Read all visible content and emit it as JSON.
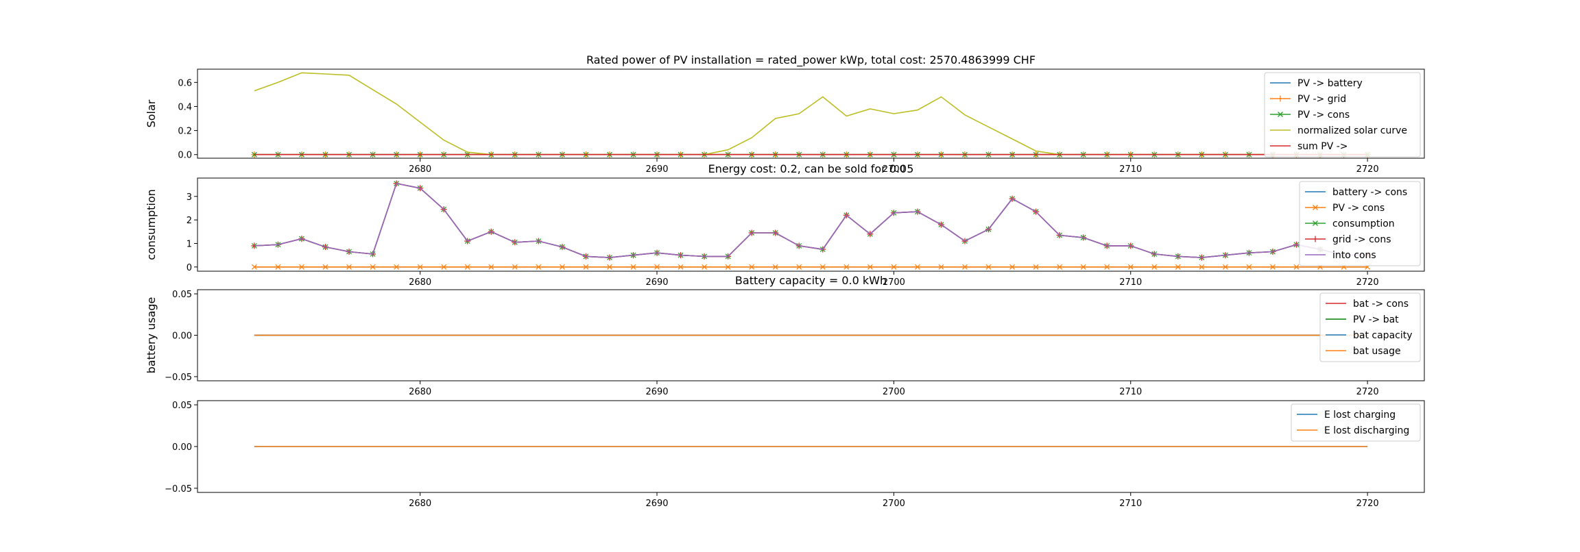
{
  "chart_data": [
    {
      "type": "line",
      "title": "Rated power of PV installation = rated_power kWp, total cost: 2570.4863999 CHF",
      "xlabel": "",
      "ylabel": "Solar",
      "xlim": [
        2670.6,
        2722.4
      ],
      "ylim": [
        -0.03,
        0.71
      ],
      "xticks": [
        2680,
        2690,
        2700,
        2710,
        2720
      ],
      "yticks": [
        0.0,
        0.2,
        0.4,
        0.6
      ],
      "ytick_labels": [
        "0.0",
        "0.2",
        "0.4",
        "0.6"
      ],
      "legend_position": "top-right",
      "x": [
        2673,
        2674,
        2675,
        2676,
        2677,
        2678,
        2679,
        2680,
        2681,
        2682,
        2683,
        2684,
        2685,
        2686,
        2687,
        2688,
        2689,
        2690,
        2691,
        2692,
        2693,
        2694,
        2695,
        2696,
        2697,
        2698,
        2699,
        2700,
        2701,
        2702,
        2703,
        2704,
        2705,
        2706,
        2707,
        2708,
        2709,
        2710,
        2711,
        2712,
        2713,
        2714,
        2715,
        2716,
        2717,
        2718,
        2719,
        2720
      ],
      "series": [
        {
          "name": "PV -> battery",
          "color": "#1f77b4",
          "marker": "none",
          "values": [
            0,
            0,
            0,
            0,
            0,
            0,
            0,
            0,
            0,
            0,
            0,
            0,
            0,
            0,
            0,
            0,
            0,
            0,
            0,
            0,
            0,
            0,
            0,
            0,
            0,
            0,
            0,
            0,
            0,
            0,
            0,
            0,
            0,
            0,
            0,
            0,
            0,
            0,
            0,
            0,
            0,
            0,
            0,
            0,
            0,
            0,
            0,
            0
          ]
        },
        {
          "name": "PV -> grid",
          "color": "#ff7f0e",
          "marker": "plus",
          "values": [
            0,
            0,
            0,
            0,
            0,
            0,
            0,
            0,
            0,
            0,
            0,
            0,
            0,
            0,
            0,
            0,
            0,
            0,
            0,
            0,
            0,
            0,
            0,
            0,
            0,
            0,
            0,
            0,
            0,
            0,
            0,
            0,
            0,
            0,
            0,
            0,
            0,
            0,
            0,
            0,
            0,
            0,
            0,
            0,
            0,
            0,
            0,
            0
          ]
        },
        {
          "name": "PV -> cons",
          "color": "#2ca02c",
          "marker": "x",
          "values": [
            0,
            0,
            0,
            0,
            0,
            0,
            0,
            0,
            0,
            0,
            0,
            0,
            0,
            0,
            0,
            0,
            0,
            0,
            0,
            0,
            0,
            0,
            0,
            0,
            0,
            0,
            0,
            0,
            0,
            0,
            0,
            0,
            0,
            0,
            0,
            0,
            0,
            0,
            0,
            0,
            0,
            0,
            0,
            0,
            0,
            0,
            0,
            0
          ]
        },
        {
          "name": "normalized solar curve",
          "color": "#bcbd22",
          "marker": "none",
          "values": [
            0.53,
            0.6,
            0.68,
            0.67,
            0.66,
            0.54,
            0.42,
            0.27,
            0.12,
            0.02,
            0,
            0,
            0,
            0,
            0,
            0,
            0,
            0,
            0,
            0,
            0.04,
            0.14,
            0.3,
            0.34,
            0.48,
            0.32,
            0.38,
            0.34,
            0.37,
            0.48,
            0.33,
            0.23,
            0.13,
            0.03,
            0,
            0,
            0,
            0,
            0,
            0,
            0,
            0,
            0,
            0,
            0,
            0,
            0,
            0
          ]
        },
        {
          "name": "sum PV ->",
          "color": "#d62728",
          "marker": "none",
          "values": [
            0,
            0,
            0,
            0,
            0,
            0,
            0,
            0,
            0,
            0,
            0,
            0,
            0,
            0,
            0,
            0,
            0,
            0,
            0,
            0,
            0,
            0,
            0,
            0,
            0,
            0,
            0,
            0,
            0,
            0,
            0,
            0,
            0,
            0,
            0,
            0,
            0,
            0,
            0,
            0,
            0,
            0,
            0,
            0,
            0,
            0,
            0,
            0
          ]
        }
      ]
    },
    {
      "type": "line",
      "title": "Energy cost: 0.2, can be sold for 0.05",
      "xlabel": "",
      "ylabel": "consumption",
      "xlim": [
        2670.6,
        2722.4
      ],
      "ylim": [
        -0.18,
        3.78
      ],
      "xticks": [
        2680,
        2690,
        2700,
        2710,
        2720
      ],
      "yticks": [
        0,
        1,
        2,
        3
      ],
      "ytick_labels": [
        "0",
        "1",
        "2",
        "3"
      ],
      "legend_position": "top-right",
      "x": [
        2673,
        2674,
        2675,
        2676,
        2677,
        2678,
        2679,
        2680,
        2681,
        2682,
        2683,
        2684,
        2685,
        2686,
        2687,
        2688,
        2689,
        2690,
        2691,
        2692,
        2693,
        2694,
        2695,
        2696,
        2697,
        2698,
        2699,
        2700,
        2701,
        2702,
        2703,
        2704,
        2705,
        2706,
        2707,
        2708,
        2709,
        2710,
        2711,
        2712,
        2713,
        2714,
        2715,
        2716,
        2717,
        2718,
        2719,
        2720
      ],
      "series": [
        {
          "name": "battery -> cons",
          "color": "#1f77b4",
          "marker": "none",
          "values": [
            0,
            0,
            0,
            0,
            0,
            0,
            0,
            0,
            0,
            0,
            0,
            0,
            0,
            0,
            0,
            0,
            0,
            0,
            0,
            0,
            0,
            0,
            0,
            0,
            0,
            0,
            0,
            0,
            0,
            0,
            0,
            0,
            0,
            0,
            0,
            0,
            0,
            0,
            0,
            0,
            0,
            0,
            0,
            0,
            0,
            0,
            0,
            0
          ]
        },
        {
          "name": "PV -> cons",
          "color": "#ff7f0e",
          "marker": "x",
          "values": [
            0,
            0,
            0,
            0,
            0,
            0,
            0,
            0,
            0,
            0,
            0,
            0,
            0,
            0,
            0,
            0,
            0,
            0,
            0,
            0,
            0,
            0,
            0,
            0,
            0,
            0,
            0,
            0,
            0,
            0,
            0,
            0,
            0,
            0,
            0,
            0,
            0,
            0,
            0,
            0,
            0,
            0,
            0,
            0,
            0,
            0,
            0,
            0
          ]
        },
        {
          "name": "consumption",
          "color": "#2ca02c",
          "marker": "x",
          "values": [
            0.9,
            0.95,
            1.2,
            0.85,
            0.65,
            0.55,
            3.55,
            3.35,
            2.45,
            1.1,
            1.5,
            1.05,
            1.1,
            0.85,
            0.45,
            0.4,
            0.5,
            0.6,
            0.5,
            0.45,
            0.45,
            1.45,
            1.45,
            0.9,
            0.75,
            2.2,
            1.4,
            2.3,
            2.35,
            1.8,
            1.1,
            1.6,
            2.9,
            2.35,
            1.35,
            1.25,
            0.9,
            0.9,
            0.55,
            0.45,
            0.4,
            0.5,
            0.6,
            0.65,
            0.95,
            0.75,
            0.5,
            0.5
          ]
        },
        {
          "name": "grid -> cons",
          "color": "#d62728",
          "marker": "plus",
          "values": [
            0.9,
            0.95,
            1.2,
            0.85,
            0.65,
            0.55,
            3.55,
            3.35,
            2.45,
            1.1,
            1.5,
            1.05,
            1.1,
            0.85,
            0.45,
            0.4,
            0.5,
            0.6,
            0.5,
            0.45,
            0.45,
            1.45,
            1.45,
            0.9,
            0.75,
            2.2,
            1.4,
            2.3,
            2.35,
            1.8,
            1.1,
            1.6,
            2.9,
            2.35,
            1.35,
            1.25,
            0.9,
            0.9,
            0.55,
            0.45,
            0.4,
            0.5,
            0.6,
            0.65,
            0.95,
            0.75,
            0.5,
            0.5
          ]
        },
        {
          "name": "into cons",
          "color": "#9467bd",
          "marker": "none",
          "values": [
            0.9,
            0.95,
            1.2,
            0.85,
            0.65,
            0.55,
            3.55,
            3.35,
            2.45,
            1.1,
            1.5,
            1.05,
            1.1,
            0.85,
            0.45,
            0.4,
            0.5,
            0.6,
            0.5,
            0.45,
            0.45,
            1.45,
            1.45,
            0.9,
            0.75,
            2.2,
            1.4,
            2.3,
            2.35,
            1.8,
            1.1,
            1.6,
            2.9,
            2.35,
            1.35,
            1.25,
            0.9,
            0.9,
            0.55,
            0.45,
            0.4,
            0.5,
            0.6,
            0.65,
            0.95,
            0.75,
            0.5,
            0.5
          ]
        }
      ]
    },
    {
      "type": "line",
      "title": "Battery capacity = 0.0 kWh",
      "xlabel": "",
      "ylabel": "battery usage",
      "xlim": [
        2670.6,
        2722.4
      ],
      "ylim": [
        -0.055,
        0.055
      ],
      "xticks": [
        2680,
        2690,
        2700,
        2710,
        2720
      ],
      "yticks": [
        -0.05,
        0.0,
        0.05
      ],
      "ytick_labels": [
        "−0.05",
        "0.00",
        "0.05"
      ],
      "legend_position": "top-right",
      "x": [
        2673,
        2720
      ],
      "series": [
        {
          "name": "bat -> cons",
          "color": "#d62728",
          "marker": "none",
          "values": [
            0,
            0
          ]
        },
        {
          "name": "PV -> bat",
          "color": "#008000",
          "marker": "none",
          "values": [
            0,
            0
          ]
        },
        {
          "name": "bat capacity",
          "color": "#1f77b4",
          "marker": "none",
          "values": [
            0,
            0
          ]
        },
        {
          "name": "bat usage",
          "color": "#ff7f0e",
          "marker": "none",
          "values": [
            0,
            0
          ]
        }
      ]
    },
    {
      "type": "line",
      "title": "",
      "xlabel": "",
      "ylabel": "",
      "xlim": [
        2670.6,
        2722.4
      ],
      "ylim": [
        -0.055,
        0.055
      ],
      "xticks": [
        2680,
        2690,
        2700,
        2710,
        2720
      ],
      "yticks": [
        -0.05,
        0.0,
        0.05
      ],
      "ytick_labels": [
        "−0.05",
        "0.00",
        "0.05"
      ],
      "legend_position": "top-right",
      "x": [
        2673,
        2720
      ],
      "series": [
        {
          "name": "E lost charging",
          "color": "#1f77b4",
          "marker": "none",
          "values": [
            0,
            0
          ]
        },
        {
          "name": "E lost discharging",
          "color": "#ff7f0e",
          "marker": "none",
          "values": [
            0,
            0
          ]
        }
      ]
    }
  ]
}
